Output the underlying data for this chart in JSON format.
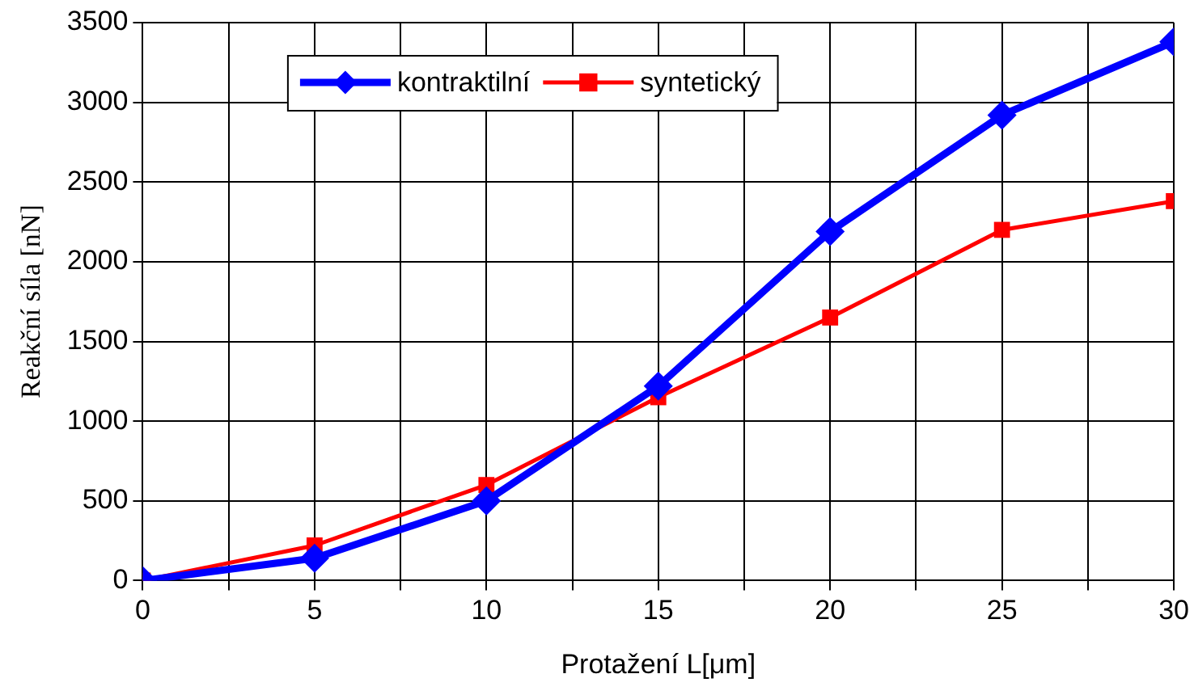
{
  "chart_data": {
    "type": "line",
    "xlabel": "Protažení L[μm]",
    "ylabel": "Reakční síla [nN]",
    "x": [
      0,
      5,
      10,
      15,
      20,
      25,
      30
    ],
    "series": [
      {
        "name": "kontraktilní",
        "color": "#0000ff",
        "marker": "diamond",
        "values": [
          0,
          140,
          500,
          1220,
          2190,
          2920,
          3380
        ]
      },
      {
        "name": "syntetický",
        "color": "#ff0000",
        "marker": "square",
        "values": [
          0,
          220,
          600,
          1150,
          1650,
          2200,
          2380
        ]
      }
    ],
    "xlim": [
      0,
      30
    ],
    "xticks": [
      0,
      {
        "value": 2.5,
        "label": null
      },
      5,
      {
        "value": 7.5,
        "label": null
      },
      10,
      {
        "value": 12.5,
        "label": null
      },
      15,
      {
        "value": 17.5,
        "label": null
      },
      20,
      {
        "value": 22.5,
        "label": null
      },
      25,
      {
        "value": 27.5,
        "label": null
      },
      30
    ],
    "ylim": [
      0,
      3500
    ],
    "yticks": [
      0,
      500,
      1000,
      1500,
      2000,
      2500,
      3000,
      3500
    ],
    "grid": true,
    "legend": "top left",
    "line_style": "solid"
  }
}
